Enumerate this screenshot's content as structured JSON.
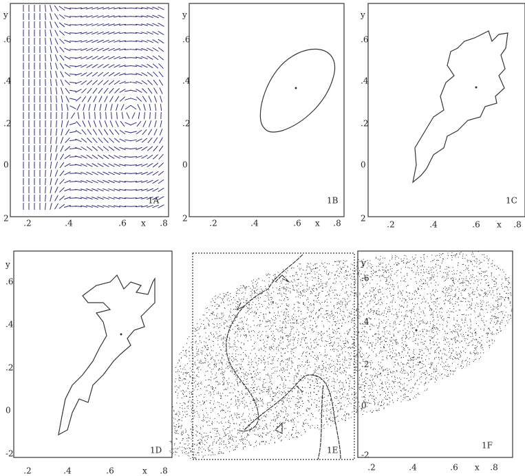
{
  "panels": [
    {
      "label": "1A",
      "y_label": "y",
      "x_label": "x",
      "xticks": [
        ".2",
        ".4",
        ".6",
        ".8"
      ],
      "yticks": [
        ".6",
        ".4",
        ".2",
        "0",
        "2"
      ]
    },
    {
      "label": "1B",
      "y_label": "y",
      "x_label": "x",
      "xticks": [
        ".2",
        ".4",
        ".6",
        ".8"
      ],
      "yticks": [
        ".6",
        ".4",
        ".2",
        "0",
        "2"
      ]
    },
    {
      "label": "1C",
      "y_label": "y",
      "x_label": "x",
      "xticks": [
        ".2",
        ".4",
        ".6",
        ".8"
      ],
      "yticks": [
        ".6",
        ".4",
        ".2",
        "0",
        "2"
      ]
    },
    {
      "label": "1D",
      "y_label": "y",
      "x_label": "x",
      "xticks": [
        ".2",
        ".4",
        ".6",
        ".8"
      ],
      "yticks": [
        ".6",
        ".4",
        ".2",
        "0",
        "-2"
      ]
    },
    {
      "label": "1E"
    },
    {
      "label": "1F",
      "y_label": "y",
      "x_label": "x",
      "xticks": [
        ".2",
        ".4",
        ".6",
        ".8"
      ],
      "yticks": [
        ".6",
        ".4",
        ".2",
        "0",
        "-2"
      ]
    }
  ]
}
